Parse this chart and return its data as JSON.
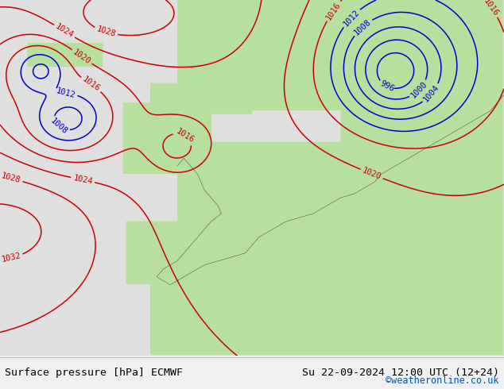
{
  "title_left": "Surface pressure [hPa] ECMWF",
  "title_right": "Su 22-09-2024 12:00 UTC (12+24)",
  "credit": "©weatheronline.co.uk",
  "ocean_color": [
    0.878,
    0.878,
    0.878
  ],
  "land_color": [
    0.718,
    0.882,
    0.62
  ],
  "contour_red": "#cc0000",
  "contour_blue": "#0000cc",
  "contour_black": "#000000",
  "footer_fontsize": 9.5,
  "credit_fontsize": 8.5,
  "credit_color": "#0055bb",
  "label_fontsize": 7.5
}
